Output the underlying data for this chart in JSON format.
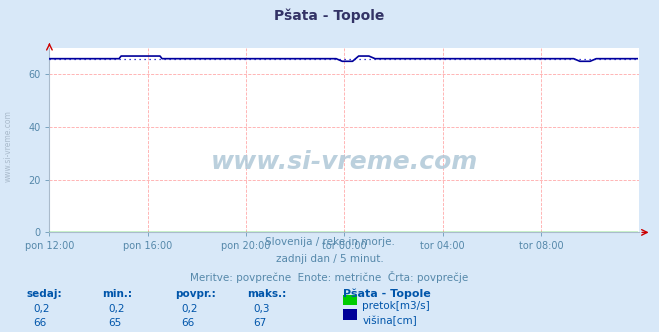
{
  "title": "Pšata - Topole",
  "bg_color": "#d8e8f8",
  "plot_bg_color": "#ffffff",
  "grid_color": "#ffaaaa",
  "xlabel_ticks": [
    "pon 12:00",
    "pon 16:00",
    "pon 20:00",
    "tor 00:00",
    "tor 04:00",
    "tor 08:00"
  ],
  "yticks": [
    0,
    20,
    40,
    60
  ],
  "ylim": [
    0,
    70
  ],
  "n_points": 288,
  "flow_color": "#00cc00",
  "height_color": "#000099",
  "height_dot_color": "#0000cc",
  "watermark_text": "www.si-vreme.com",
  "watermark_color": "#b0c8d8",
  "subtitle1": "Slovenija / reke in morje.",
  "subtitle2": "zadnji dan / 5 minut.",
  "subtitle3": "Meritve: povprečne  Enote: metrične  Črta: povprečje",
  "subtitle_color": "#5588aa",
  "legend_title": "Pšata - Topole",
  "legend_flow_label": "pretok[m3/s]",
  "legend_height_label": "višina[cm]",
  "table_headers": [
    "sedaj:",
    "min.:",
    "povpr.:",
    "maks.:"
  ],
  "table_flow": [
    "0,2",
    "0,2",
    "0,2",
    "0,3"
  ],
  "table_height": [
    "66",
    "65",
    "66",
    "67"
  ],
  "table_color": "#0055aa",
  "axis_color": "#aabbcc",
  "tick_color": "#5588aa",
  "arrow_color": "#cc0000",
  "side_text": "www.si-vreme.com",
  "side_text_color": "#aabbcc",
  "title_color": "#333366"
}
